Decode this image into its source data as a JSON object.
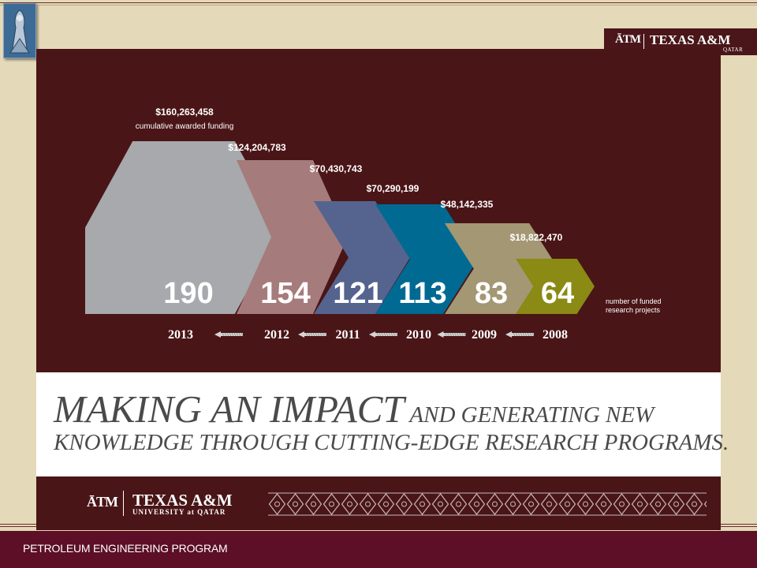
{
  "header": {
    "brand_atm": "ĀTM",
    "brand_name": "TEXAS A&M",
    "brand_sub": "QATAR"
  },
  "infographic": {
    "funding_caption": "cumulative awarded funding",
    "projects_caption_line1": "number of funded",
    "projects_caption_line2": "research projects",
    "items": [
      {
        "year": "2013",
        "projects": "190",
        "funding": "$160,263,458",
        "color": "#a7a9ac"
      },
      {
        "year": "2012",
        "projects": "154",
        "funding": "$124,204,783",
        "color": "#a67b7c"
      },
      {
        "year": "2011",
        "projects": "121",
        "funding": "$70,430,743",
        "color": "#55648f"
      },
      {
        "year": "2010",
        "projects": "113",
        "funding": "$70,290,199",
        "color": "#006a93"
      },
      {
        "year": "2009",
        "projects": "83",
        "funding": "$48,142,335",
        "color": "#a39774"
      },
      {
        "year": "2008",
        "projects": "64",
        "funding": "$18,822,470",
        "color": "#8a8a14"
      }
    ]
  },
  "headline": {
    "line1_large": "MAKING AN IMPACT",
    "line1_small": " AND GENERATING NEW",
    "line2": "KNOWLEDGE THROUGH CUTTING-EDGE RESEARCH PROGRAMS."
  },
  "footer": {
    "brand_atm": "ĀTM",
    "brand_name": "TEXAS A&M",
    "brand_sub": "UNIVERSITY at QATAR"
  },
  "bottom": {
    "program_label": "PETROLEUM ENGINEERING PROGRAM"
  },
  "colors": {
    "maroon": "#4a1517",
    "bottom_bar": "#5c0f26",
    "background": "#e4d9b8"
  },
  "icons": {
    "slide_logo": "university-seal-icon",
    "arrow": "arrow-left-icon"
  }
}
